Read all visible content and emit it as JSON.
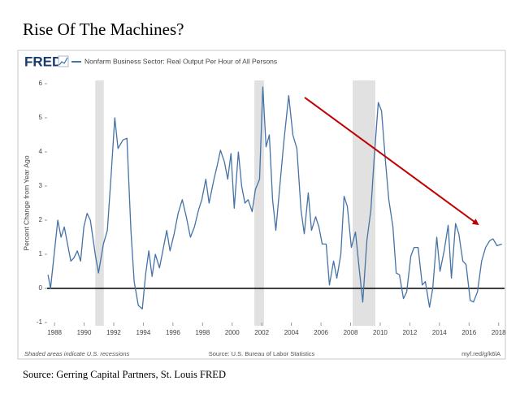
{
  "chart_data": {
    "type": "line",
    "title": "Rise Of The Machines?",
    "logo": "FRED",
    "ylabel": "Percent Change from Year Ago",
    "footnote": "Shaded areas indicate U.S. recessions",
    "source": "Source: U.S. Bureau of Labor Statistics",
    "link": "myf.red/g/k6lA",
    "caption": "Source: Gerring Capital Partners, St. Louis FRED",
    "x": [
      1987.56,
      1987.73,
      1988.22,
      1988.44,
      1988.66,
      1988.88,
      1989.1,
      1989.32,
      1989.54,
      1989.76,
      1989.98,
      1990.2,
      1990.42,
      1990.75,
      1990.97,
      1991.3,
      1991.57,
      1991.85,
      1992.07,
      1992.29,
      1992.62,
      1992.89,
      1993.16,
      1993.38,
      1993.66,
      1993.93,
      1994.15,
      1994.37,
      1994.59,
      1994.81,
      1995.09,
      1995.36,
      1995.58,
      1995.8,
      1996.08,
      1996.35,
      1996.63,
      1996.9,
      1997.18,
      1997.45,
      1997.73,
      1997.95,
      1998.22,
      1998.44,
      1998.77,
      1998.99,
      1999.21,
      1999.48,
      1999.7,
      1999.92,
      2000.14,
      2000.42,
      2000.64,
      2000.86,
      2001.08,
      2001.35,
      2001.57,
      2001.85,
      2002.07,
      2002.29,
      2002.51,
      2002.73,
      2002.95,
      2003.22,
      2003.49,
      2003.82,
      2004.1,
      2004.37,
      2004.65,
      2004.87,
      2005.14,
      2005.36,
      2005.64,
      2005.86,
      2006.08,
      2006.35,
      2006.57,
      2006.85,
      2007.07,
      2007.34,
      2007.56,
      2007.78,
      2008.05,
      2008.33,
      2008.6,
      2008.82,
      2009.1,
      2009.37,
      2009.59,
      2009.87,
      2010.09,
      2010.36,
      2010.58,
      2010.86,
      2011.08,
      2011.3,
      2011.57,
      2011.79,
      2012.07,
      2012.29,
      2012.56,
      2012.84,
      2013.05,
      2013.33,
      2013.55,
      2013.82,
      2014.04,
      2014.32,
      2014.59,
      2014.81,
      2015.09,
      2015.31,
      2015.58,
      2015.8,
      2016.08,
      2016.3,
      2016.57,
      2016.85,
      2017.12,
      2017.4,
      2017.62,
      2017.89,
      2018.22
    ],
    "series": [
      {
        "name": "Nonfarm Business Sector: Real Output Per Hour of All Persons",
        "color": "#4572a7",
        "values": [
          0.4,
          0.0,
          2.0,
          1.5,
          1.8,
          1.3,
          0.8,
          0.9,
          1.1,
          0.8,
          1.8,
          2.2,
          2.0,
          1.0,
          0.45,
          1.3,
          1.7,
          3.5,
          5.0,
          4.1,
          4.35,
          4.4,
          1.7,
          0.2,
          -0.5,
          -0.6,
          0.4,
          1.1,
          0.35,
          1.0,
          0.6,
          1.2,
          1.7,
          1.1,
          1.6,
          2.2,
          2.6,
          2.1,
          1.5,
          1.8,
          2.3,
          2.6,
          3.2,
          2.5,
          3.2,
          3.6,
          4.05,
          3.7,
          3.2,
          3.95,
          2.35,
          4.0,
          3.0,
          2.5,
          2.6,
          2.25,
          2.9,
          3.2,
          5.9,
          4.15,
          4.5,
          2.6,
          1.7,
          3.0,
          4.3,
          5.65,
          4.5,
          4.1,
          2.3,
          1.6,
          2.8,
          1.7,
          2.1,
          1.8,
          1.3,
          1.3,
          0.1,
          0.8,
          0.3,
          1.0,
          2.7,
          2.4,
          1.2,
          1.65,
          0.5,
          -0.4,
          1.4,
          2.3,
          3.8,
          5.45,
          5.2,
          3.7,
          2.6,
          1.8,
          0.45,
          0.4,
          -0.3,
          -0.1,
          0.95,
          1.2,
          1.2,
          0.1,
          0.2,
          -0.55,
          0.0,
          1.5,
          0.5,
          1.1,
          1.85,
          0.3,
          1.9,
          1.6,
          0.8,
          0.7,
          -0.35,
          -0.4,
          -0.1,
          0.8,
          1.2,
          1.4,
          1.45,
          1.25,
          1.3
        ]
      }
    ],
    "recessions": [
      [
        1990.75,
        1991.33
      ],
      [
        2001.5,
        2002.15
      ],
      [
        2008.14,
        2009.67
      ]
    ],
    "recession_color": "#e1e1e1",
    "arrow_color": "#c00000",
    "xlim": [
      1987.5,
      2018.4
    ],
    "xticks": [
      1988,
      1990,
      1992,
      1994,
      1996,
      1998,
      2000,
      2002,
      2004,
      2006,
      2008,
      2010,
      2012,
      2014,
      2016,
      2018
    ],
    "ylim": [
      -1,
      6
    ],
    "yticks": [
      -1,
      0,
      1,
      2,
      3,
      4,
      5,
      6
    ],
    "zero_line": true,
    "grid": false
  }
}
